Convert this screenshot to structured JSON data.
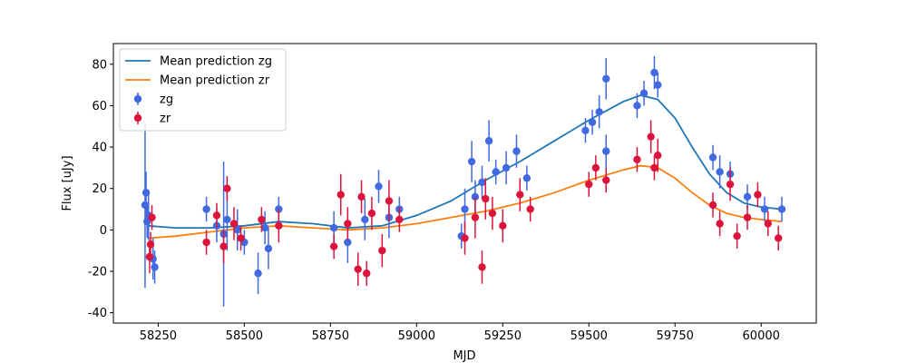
{
  "chart_data": {
    "type": "scatter",
    "xlabel": "MJD",
    "ylabel": "Flux [uJy]",
    "xlim": [
      58120,
      60160
    ],
    "ylim": [
      -45,
      90
    ],
    "x_ticks": [
      58250,
      58500,
      58750,
      59000,
      59250,
      59500,
      59750,
      60000
    ],
    "y_ticks": [
      -40,
      -20,
      0,
      20,
      40,
      60,
      80
    ],
    "legend_position": "top-left",
    "grid": false,
    "colors": {
      "zg_line": "#1f77b4",
      "zr_line": "#ff7f0e",
      "zg_points": "#4169e1",
      "zr_points": "#dc143c"
    },
    "legend": [
      {
        "label": "Mean prediction zg",
        "kind": "line",
        "color": "#1f77b4"
      },
      {
        "label": "Mean prediction zr",
        "kind": "line",
        "color": "#ff7f0e"
      },
      {
        "label": "zg",
        "kind": "errorbar",
        "color": "#4169e1"
      },
      {
        "label": "zr",
        "kind": "errorbar",
        "color": "#dc143c"
      }
    ],
    "series": [
      {
        "name": "Mean prediction zg",
        "kind": "line",
        "x": [
          58220,
          58300,
          58400,
          58500,
          58600,
          58700,
          58800,
          58900,
          59000,
          59100,
          59200,
          59300,
          59400,
          59500,
          59600,
          59650,
          59700,
          59750,
          59800,
          59850,
          59900,
          59950,
          60000,
          60060
        ],
        "y": [
          2,
          1,
          1,
          2,
          4,
          3,
          1,
          2,
          7,
          14,
          24,
          33,
          43,
          53,
          62,
          65,
          63,
          54,
          40,
          27,
          18,
          13,
          11,
          10
        ]
      },
      {
        "name": "Mean prediction zr",
        "kind": "line",
        "x": [
          58220,
          58300,
          58400,
          58500,
          58600,
          58700,
          58800,
          58900,
          59000,
          59100,
          59200,
          59300,
          59400,
          59500,
          59600,
          59650,
          59700,
          59750,
          59800,
          59850,
          59900,
          59950,
          60000,
          60060
        ],
        "y": [
          -4,
          -3,
          -1,
          1,
          2,
          1,
          0,
          1,
          3,
          6,
          9,
          13,
          18,
          24,
          29,
          31,
          30,
          25,
          18,
          12,
          8,
          6,
          5,
          4
        ]
      },
      {
        "name": "zg",
        "kind": "errorbar",
        "points": [
          {
            "x": 58212,
            "y": 12,
            "err": 40
          },
          {
            "x": 58215,
            "y": 18,
            "err": 10
          },
          {
            "x": 58218,
            "y": 4,
            "err": 8
          },
          {
            "x": 58222,
            "y": 7,
            "err": 12
          },
          {
            "x": 58235,
            "y": -14,
            "err": 10
          },
          {
            "x": 58240,
            "y": -18,
            "err": 8
          },
          {
            "x": 58390,
            "y": 10,
            "err": 6
          },
          {
            "x": 58420,
            "y": 2,
            "err": 8
          },
          {
            "x": 58440,
            "y": -2,
            "err": 35
          },
          {
            "x": 58450,
            "y": 5,
            "err": 15
          },
          {
            "x": 58480,
            "y": 0,
            "err": 10
          },
          {
            "x": 58500,
            "y": -6,
            "err": 6
          },
          {
            "x": 58540,
            "y": -21,
            "err": 10
          },
          {
            "x": 58560,
            "y": 1,
            "err": 8
          },
          {
            "x": 58570,
            "y": -9,
            "err": 10
          },
          {
            "x": 58600,
            "y": 10,
            "err": 6
          },
          {
            "x": 58760,
            "y": 1,
            "err": 8
          },
          {
            "x": 58800,
            "y": -6,
            "err": 10
          },
          {
            "x": 58850,
            "y": 5,
            "err": 10
          },
          {
            "x": 58890,
            "y": 21,
            "err": 8
          },
          {
            "x": 58920,
            "y": 6,
            "err": 10
          },
          {
            "x": 58950,
            "y": 10,
            "err": 6
          },
          {
            "x": 59130,
            "y": -3,
            "err": 6
          },
          {
            "x": 59140,
            "y": 10,
            "err": 10
          },
          {
            "x": 59160,
            "y": 33,
            "err": 10
          },
          {
            "x": 59170,
            "y": 16,
            "err": 8
          },
          {
            "x": 59190,
            "y": 23,
            "err": 8
          },
          {
            "x": 59210,
            "y": 43,
            "err": 10
          },
          {
            "x": 59230,
            "y": 28,
            "err": 6
          },
          {
            "x": 59260,
            "y": 30,
            "err": 8
          },
          {
            "x": 59290,
            "y": 38,
            "err": 8
          },
          {
            "x": 59320,
            "y": 25,
            "err": 6
          },
          {
            "x": 59490,
            "y": 48,
            "err": 6
          },
          {
            "x": 59510,
            "y": 52,
            "err": 6
          },
          {
            "x": 59530,
            "y": 57,
            "err": 8
          },
          {
            "x": 59550,
            "y": 73,
            "err": 10
          },
          {
            "x": 59550,
            "y": 38,
            "err": 8
          },
          {
            "x": 59640,
            "y": 60,
            "err": 6
          },
          {
            "x": 59660,
            "y": 66,
            "err": 6
          },
          {
            "x": 59690,
            "y": 76,
            "err": 8
          },
          {
            "x": 59700,
            "y": 70,
            "err": 6
          },
          {
            "x": 59860,
            "y": 35,
            "err": 6
          },
          {
            "x": 59880,
            "y": 28,
            "err": 8
          },
          {
            "x": 59910,
            "y": 27,
            "err": 6
          },
          {
            "x": 59960,
            "y": 16,
            "err": 6
          },
          {
            "x": 60010,
            "y": 10,
            "err": 6
          },
          {
            "x": 60060,
            "y": 10,
            "err": 6
          }
        ]
      },
      {
        "name": "zr",
        "kind": "errorbar",
        "points": [
          {
            "x": 58225,
            "y": -13,
            "err": 8
          },
          {
            "x": 58228,
            "y": -7,
            "err": 6
          },
          {
            "x": 58232,
            "y": 6,
            "err": 6
          },
          {
            "x": 58390,
            "y": -6,
            "err": 6
          },
          {
            "x": 58420,
            "y": 7,
            "err": 6
          },
          {
            "x": 58440,
            "y": -8,
            "err": 8
          },
          {
            "x": 58450,
            "y": 20,
            "err": 6
          },
          {
            "x": 58470,
            "y": 3,
            "err": 8
          },
          {
            "x": 58490,
            "y": -4,
            "err": 6
          },
          {
            "x": 58550,
            "y": 5,
            "err": 6
          },
          {
            "x": 58600,
            "y": 2,
            "err": 8
          },
          {
            "x": 58760,
            "y": -8,
            "err": 6
          },
          {
            "x": 58780,
            "y": 17,
            "err": 10
          },
          {
            "x": 58800,
            "y": 3,
            "err": 8
          },
          {
            "x": 58830,
            "y": -19,
            "err": 8
          },
          {
            "x": 58840,
            "y": 16,
            "err": 8
          },
          {
            "x": 58855,
            "y": -21,
            "err": 6
          },
          {
            "x": 58870,
            "y": 8,
            "err": 8
          },
          {
            "x": 58900,
            "y": -10,
            "err": 8
          },
          {
            "x": 58920,
            "y": 14,
            "err": 10
          },
          {
            "x": 58950,
            "y": 5,
            "err": 6
          },
          {
            "x": 59140,
            "y": -4,
            "err": 8
          },
          {
            "x": 59170,
            "y": 6,
            "err": 10
          },
          {
            "x": 59190,
            "y": -18,
            "err": 8
          },
          {
            "x": 59200,
            "y": 15,
            "err": 10
          },
          {
            "x": 59220,
            "y": 8,
            "err": 8
          },
          {
            "x": 59250,
            "y": 2,
            "err": 8
          },
          {
            "x": 59300,
            "y": 17,
            "err": 8
          },
          {
            "x": 59330,
            "y": 10,
            "err": 6
          },
          {
            "x": 59500,
            "y": 22,
            "err": 6
          },
          {
            "x": 59520,
            "y": 30,
            "err": 6
          },
          {
            "x": 59550,
            "y": 24,
            "err": 6
          },
          {
            "x": 59640,
            "y": 34,
            "err": 6
          },
          {
            "x": 59680,
            "y": 45,
            "err": 8
          },
          {
            "x": 59690,
            "y": 30,
            "err": 6
          },
          {
            "x": 59700,
            "y": 36,
            "err": 8
          },
          {
            "x": 59860,
            "y": 12,
            "err": 6
          },
          {
            "x": 59880,
            "y": 3,
            "err": 6
          },
          {
            "x": 59910,
            "y": 22,
            "err": 8
          },
          {
            "x": 59930,
            "y": -3,
            "err": 6
          },
          {
            "x": 59960,
            "y": 6,
            "err": 6
          },
          {
            "x": 59990,
            "y": 17,
            "err": 6
          },
          {
            "x": 60020,
            "y": 3,
            "err": 6
          },
          {
            "x": 60050,
            "y": -4,
            "err": 6
          }
        ]
      }
    ]
  }
}
